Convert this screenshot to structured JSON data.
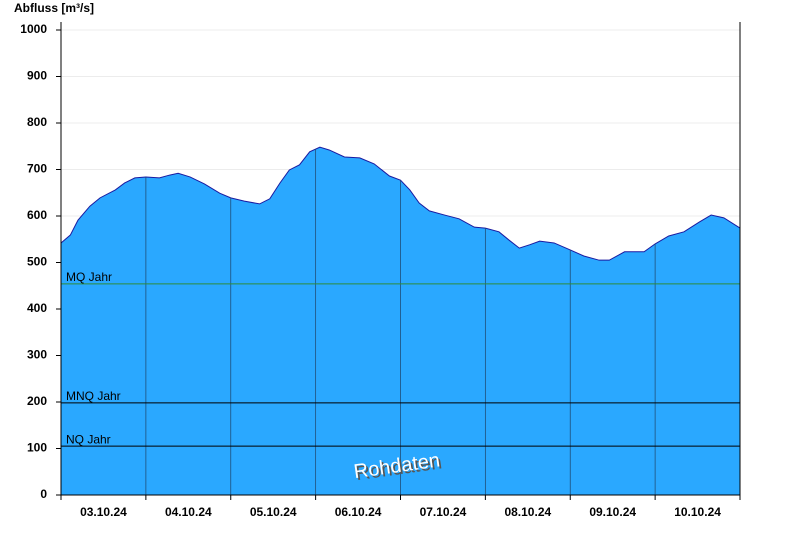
{
  "chart_data": {
    "type": "area",
    "y_label": "Abfluss [m³/s]",
    "annotation": "Rohdaten",
    "color": "#2aa8ff",
    "line_color": "#1a1aa0",
    "grid": true,
    "xlim": [
      0,
      8
    ],
    "xticks": [
      0,
      1,
      2,
      3,
      4,
      5,
      6,
      7,
      8
    ],
    "categories": [
      "03.10.24",
      "04.10.24",
      "05.10.24",
      "06.10.24",
      "07.10.24",
      "08.10.24",
      "09.10.24",
      "10.10.24"
    ],
    "ylim": [
      0,
      1000
    ],
    "yticks": [
      0,
      100,
      200,
      300,
      400,
      500,
      600,
      700,
      800,
      900,
      1000
    ],
    "x": [
      0,
      0.11,
      0.2,
      0.34,
      0.46,
      0.64,
      0.75,
      0.87,
      1,
      1.16,
      1.28,
      1.38,
      1.52,
      1.69,
      1.87,
      2,
      2.16,
      2.34,
      2.46,
      2.58,
      2.69,
      2.81,
      2.93,
      3.05,
      3.16,
      3.34,
      3.52,
      3.69,
      3.87,
      4,
      4.11,
      4.22,
      4.34,
      4.52,
      4.69,
      4.87,
      5,
      5.16,
      5.28,
      5.4,
      5.52,
      5.64,
      5.81,
      6,
      6.16,
      6.34,
      6.46,
      6.64,
      6.87,
      7,
      7.16,
      7.34,
      7.52,
      7.66,
      7.81,
      8
    ],
    "values": [
      542,
      559,
      591,
      621,
      639,
      656,
      671,
      682,
      684,
      682,
      688,
      692,
      684,
      669,
      649,
      639,
      632,
      626,
      637,
      671,
      699,
      710,
      738,
      748,
      742,
      727,
      725,
      712,
      686,
      677,
      656,
      628,
      611,
      602,
      594,
      576,
      574,
      566,
      548,
      531,
      538,
      546,
      542,
      527,
      514,
      505,
      505,
      523,
      523,
      540,
      557,
      566,
      587,
      602,
      596,
      574
    ],
    "reference_lines": [
      {
        "label": "MQ Jahr",
        "value": 454,
        "color": "#2e8b3a"
      },
      {
        "label": "MNQ Jahr",
        "value": 198,
        "color": "#000000"
      },
      {
        "label": "NQ Jahr",
        "value": 105,
        "color": "#000000"
      }
    ]
  }
}
